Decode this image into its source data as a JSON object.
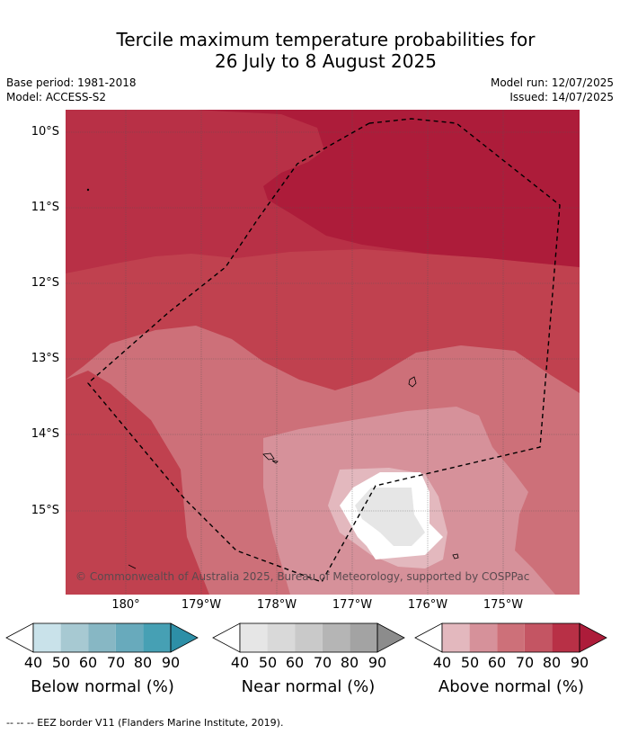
{
  "title_line1": "Tercile maximum temperature probabilities for",
  "title_line2": "26 July to 8 August 2025",
  "base_period": "Base period: 1981-2018",
  "model": "Model: ACCESS-S2",
  "model_run": "Model run: 12/07/2025",
  "issued": "Issued: 14/07/2025",
  "credit": "© Commonwealth of Australia 2025, Bureau of Meteorology, supported by COSPPac",
  "lat_labels": [
    "10°S",
    "11°S",
    "12°S",
    "13°S",
    "14°S",
    "15°S"
  ],
  "lon_labels": [
    "180°",
    "179°W",
    "178°W",
    "177°W",
    "176°W",
    "175°W"
  ],
  "colorbars": [
    {
      "label": "Below normal (%)",
      "ticks": [
        "40",
        "50",
        "60",
        "70",
        "80",
        "90"
      ],
      "colors": [
        "#ffffff",
        "#c9e2ea",
        "#a7c9d2",
        "#87b7c4",
        "#68aabc",
        "#46a0b4",
        "#2d8fa7"
      ]
    },
    {
      "label": "Near normal (%)",
      "ticks": [
        "40",
        "50",
        "60",
        "70",
        "80",
        "90"
      ],
      "colors": [
        "#ffffff",
        "#e6e6e6",
        "#d9d9d9",
        "#c9c9c9",
        "#b5b5b5",
        "#a3a3a3",
        "#8c8c8c"
      ]
    },
    {
      "label": "Above normal (%)",
      "ticks": [
        "40",
        "50",
        "60",
        "70",
        "80",
        "90"
      ],
      "colors": [
        "#ffffff",
        "#e3b8be",
        "#d6919a",
        "#cd7079",
        "#c45563",
        "#b83046",
        "#ad1c3a"
      ]
    }
  ],
  "footer": "--  --  -- EEZ border V11 (Flanders Marine Institute, 2019)."
}
